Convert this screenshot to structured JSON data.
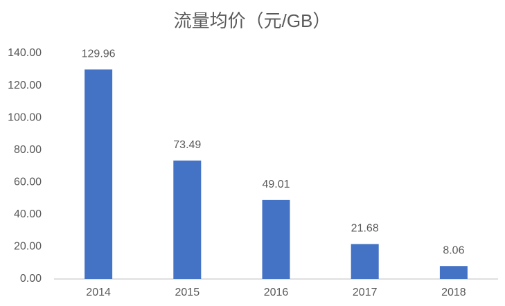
{
  "chart_data": {
    "type": "bar",
    "title": "流量均价（元/GB）",
    "categories": [
      "2014",
      "2015",
      "2016",
      "2017",
      "2018"
    ],
    "values": [
      129.96,
      73.49,
      49.01,
      21.68,
      8.06
    ],
    "color": "#4472c4",
    "ylim": [
      0,
      140
    ],
    "yticks": [
      {
        "value": 0,
        "label": "0.00"
      },
      {
        "value": 20,
        "label": "20.00"
      },
      {
        "value": 40,
        "label": "40.00"
      },
      {
        "value": 60,
        "label": "60.00"
      },
      {
        "value": 80,
        "label": "80.00"
      },
      {
        "value": 100,
        "label": "100.00"
      },
      {
        "value": 120,
        "label": "120.00"
      },
      {
        "value": 140,
        "label": "140.00"
      }
    ],
    "grid": false
  }
}
